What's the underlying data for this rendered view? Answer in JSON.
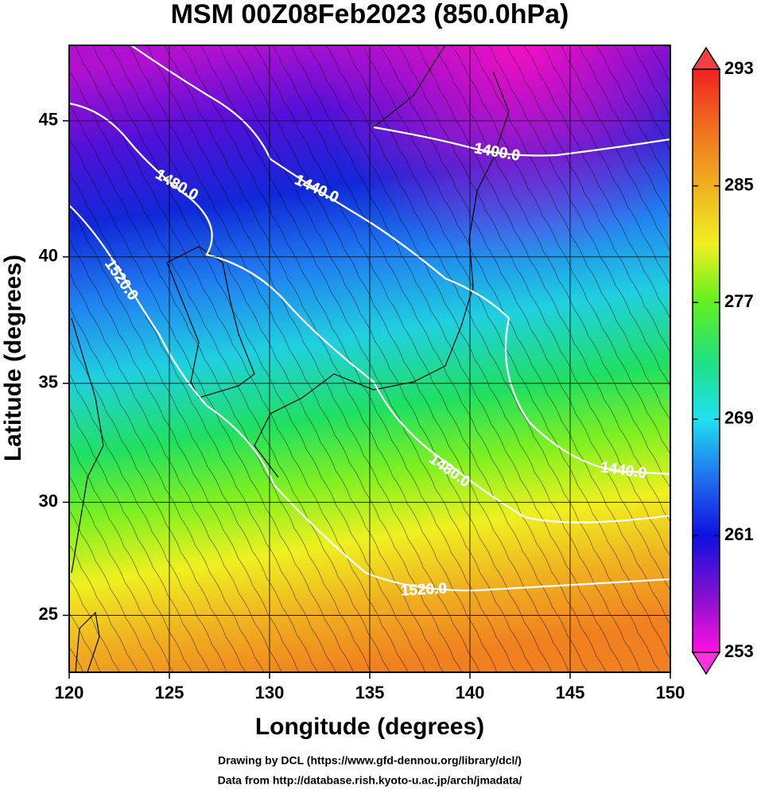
{
  "title": "MSM 00Z08Feb2023 (850.0hPa)",
  "map": {
    "xlabel": "Longitude (degrees)",
    "ylabel": "Latitude  (degrees)",
    "xlim": [
      120,
      150
    ],
    "ylim": [
      22.4,
      47.6
    ],
    "xticks": [
      120,
      125,
      130,
      135,
      140,
      145,
      150
    ],
    "yticks": [
      25,
      30,
      35,
      40,
      45
    ],
    "projection": "mercator",
    "grid": true
  },
  "colorbar": {
    "lim": [
      253,
      293
    ],
    "ticks": [
      253,
      261,
      269,
      277,
      285,
      293
    ]
  },
  "contour_labels": [
    "1400.0",
    "1440.0",
    "1480.0",
    "1520.0",
    "1480.0",
    "1440.0",
    "1520.0"
  ],
  "credits": [
    "Drawing by DCL (https://www.gfd-dennou.org/library/dcl/)",
    "Data from http://database.rish.kyoto-u.ac.jp/arch/jmadata/"
  ]
}
